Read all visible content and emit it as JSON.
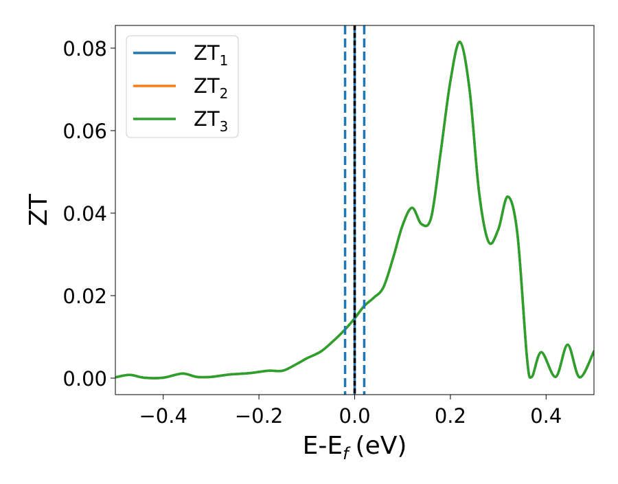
{
  "chart_data": {
    "type": "line",
    "title": "",
    "xlabel": "E-E",
    "xlabel_sub": "f",
    "xlabel_unit": "(eV)",
    "ylabel": "ZT",
    "xlim": [
      -0.5,
      0.5
    ],
    "ylim": [
      -0.004,
      0.0855
    ],
    "xticks": [
      -0.4,
      -0.2,
      0.0,
      0.2,
      0.4
    ],
    "xtick_labels": [
      "−0.4",
      "−0.2",
      "0.0",
      "0.2",
      "0.4"
    ],
    "yticks": [
      0.0,
      0.02,
      0.04,
      0.06,
      0.08
    ],
    "ytick_labels": [
      "0.00",
      "0.02",
      "0.04",
      "0.06",
      "0.08"
    ],
    "grid": false,
    "legend_position": "top-left",
    "x": [
      -0.5,
      -0.47,
      -0.44,
      -0.4,
      -0.36,
      -0.33,
      -0.3,
      -0.26,
      -0.22,
      -0.18,
      -0.15,
      -0.12,
      -0.1,
      -0.07,
      -0.04,
      -0.02,
      0.0,
      0.02,
      0.04,
      0.06,
      0.08,
      0.1,
      0.12,
      0.14,
      0.16,
      0.18,
      0.2,
      0.22,
      0.24,
      0.26,
      0.28,
      0.3,
      0.32,
      0.34,
      0.36,
      0.37,
      0.39,
      0.42,
      0.445,
      0.47,
      0.5
    ],
    "series": [
      {
        "name": "ZT",
        "sub": "1",
        "color": "#1f77b4",
        "values": [
          0.0002,
          0.0008,
          0.0001,
          0.0001,
          0.0011,
          0.0003,
          0.0003,
          0.0009,
          0.0012,
          0.0018,
          0.0018,
          0.0035,
          0.0048,
          0.0065,
          0.0095,
          0.0118,
          0.0145,
          0.0175,
          0.0195,
          0.022,
          0.029,
          0.037,
          0.0413,
          0.0373,
          0.039,
          0.055,
          0.072,
          0.0815,
          0.07,
          0.045,
          0.033,
          0.036,
          0.044,
          0.035,
          0.005,
          0.0003,
          0.0063,
          0.0003,
          0.0081,
          0.0002,
          0.0065
        ]
      },
      {
        "name": "ZT",
        "sub": "2",
        "color": "#ff7f0e",
        "values": [
          0.0002,
          0.0008,
          0.0001,
          0.0001,
          0.0011,
          0.0003,
          0.0003,
          0.0009,
          0.0012,
          0.0018,
          0.0018,
          0.0035,
          0.0048,
          0.0065,
          0.0095,
          0.0118,
          0.0145,
          0.0175,
          0.0195,
          0.022,
          0.029,
          0.037,
          0.0413,
          0.0373,
          0.039,
          0.055,
          0.072,
          0.0815,
          0.07,
          0.045,
          0.033,
          0.036,
          0.044,
          0.035,
          0.005,
          0.0003,
          0.0063,
          0.0003,
          0.0081,
          0.0002,
          0.0065
        ]
      },
      {
        "name": "ZT",
        "sub": "3",
        "color": "#2ca02c",
        "values": [
          0.0002,
          0.0008,
          0.0001,
          0.0001,
          0.0011,
          0.0003,
          0.0003,
          0.0009,
          0.0012,
          0.0018,
          0.0018,
          0.0035,
          0.0048,
          0.0065,
          0.0095,
          0.0118,
          0.0145,
          0.0175,
          0.0195,
          0.022,
          0.029,
          0.037,
          0.0413,
          0.0373,
          0.039,
          0.055,
          0.072,
          0.0815,
          0.07,
          0.045,
          0.033,
          0.036,
          0.044,
          0.035,
          0.005,
          0.0003,
          0.0063,
          0.0003,
          0.0081,
          0.0002,
          0.0065
        ]
      }
    ],
    "vlines": [
      {
        "x": -0.02,
        "style": "dashed",
        "color": "#1f77b4"
      },
      {
        "x": 0.0,
        "style": "solid",
        "color": "#1f77b4"
      },
      {
        "x": 0.02,
        "style": "dashed",
        "color": "#1f77b4"
      },
      {
        "x": 0.0,
        "style": "dashed",
        "color": "#000000"
      }
    ]
  }
}
